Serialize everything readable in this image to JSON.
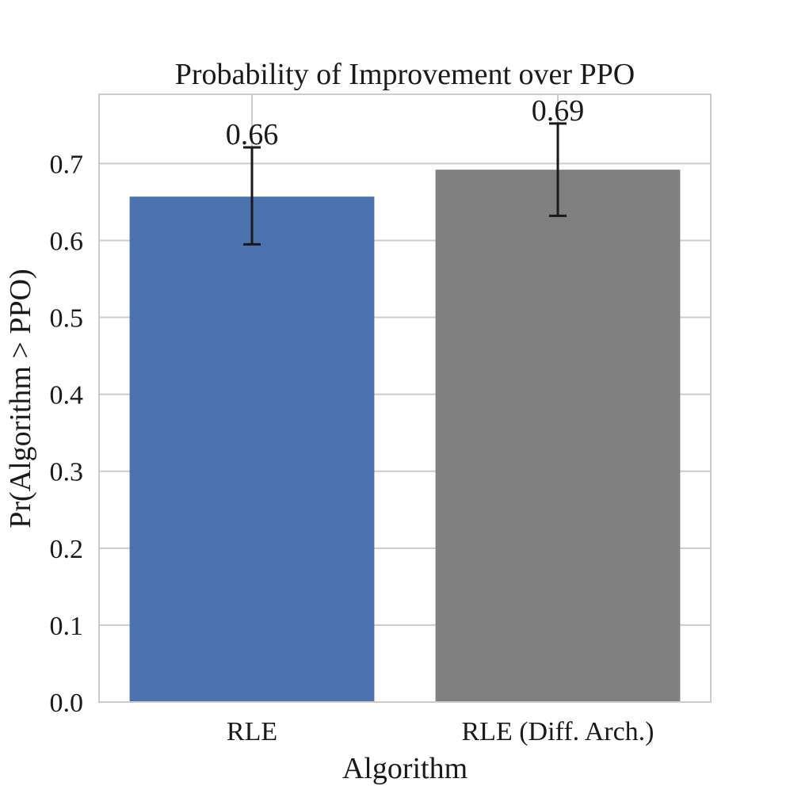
{
  "chart_data": {
    "type": "bar",
    "title": "Probability of Improvement over PPO",
    "xlabel": "Algorithm",
    "ylabel": "Pr(Algorithm > PPO)",
    "categories": [
      "RLE",
      "RLE (Diff. Arch.)"
    ],
    "values": [
      0.657,
      0.692
    ],
    "value_labels": [
      "0.66",
      "0.69"
    ],
    "error_low": [
      0.595,
      0.632
    ],
    "error_high": [
      0.721,
      0.752
    ],
    "colors": [
      "#4c72b0",
      "#808080"
    ],
    "ylim": [
      0,
      0.79
    ],
    "yticks": [
      0.0,
      0.1,
      0.2,
      0.3,
      0.4,
      0.5,
      0.6,
      0.7
    ],
    "ytick_labels": [
      "0.0",
      "0.1",
      "0.2",
      "0.3",
      "0.4",
      "0.5",
      "0.6",
      "0.7"
    ],
    "grid": true,
    "grid_color": "#cccccc",
    "error_color": "#1a1a1a"
  }
}
